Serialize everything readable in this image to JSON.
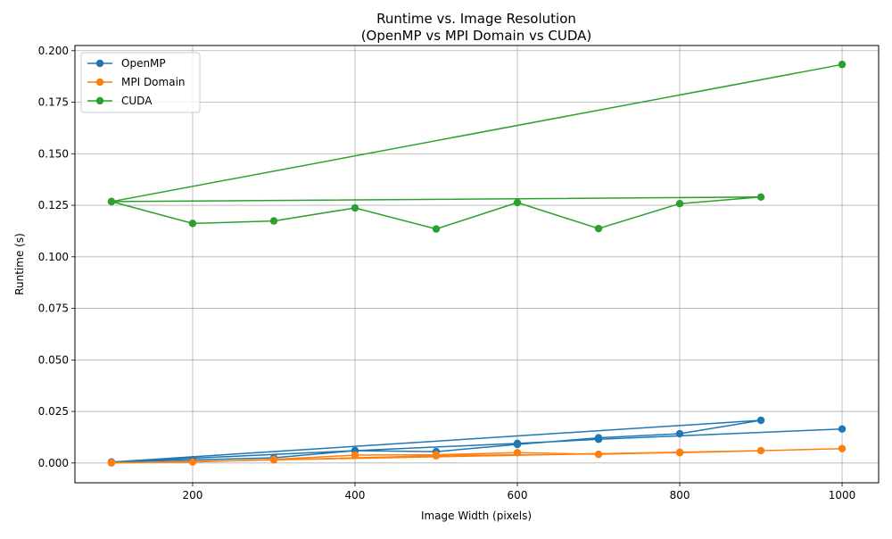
{
  "chart_data": {
    "type": "line",
    "title": "Runtime vs. Image Resolution",
    "subtitle": "(OpenMP vs MPI Domain vs CUDA)",
    "xlabel": "Image Width (pixels)",
    "ylabel": "Runtime (s)",
    "xlim": [
      55,
      1045
    ],
    "ylim": [
      -0.0096,
      0.2025
    ],
    "xticks": [
      200,
      400,
      600,
      800,
      1000
    ],
    "yticks": [
      0.0,
      0.025,
      0.05,
      0.075,
      0.1,
      0.125,
      0.15,
      0.175,
      0.2
    ],
    "ytick_labels": [
      "0.000",
      "0.025",
      "0.050",
      "0.075",
      "0.100",
      "0.125",
      "0.150",
      "0.175",
      "0.200"
    ],
    "grid": true,
    "legend_position": "top-left",
    "series": [
      {
        "name": "OpenMP",
        "color": "#1f77b4",
        "x": [
          100,
          200,
          300,
          400,
          500,
          600,
          700,
          800,
          900,
          100,
          400,
          600,
          700,
          1000
        ],
        "y": [
          0.0005,
          0.0015,
          0.0025,
          0.006,
          0.0055,
          0.009,
          0.0122,
          0.0142,
          0.0207,
          0.0005,
          0.006,
          0.0095,
          0.0115,
          0.0165
        ]
      },
      {
        "name": "MPI Domain",
        "color": "#ff7f0e",
        "x": [
          100,
          200,
          300,
          400,
          500,
          600,
          700,
          800,
          900,
          100,
          300,
          500,
          800,
          1000
        ],
        "y": [
          0.0002,
          0.0005,
          0.0018,
          0.0038,
          0.004,
          0.005,
          0.0042,
          0.0052,
          0.006,
          0.0,
          0.0015,
          0.0035,
          0.005,
          0.007
        ]
      },
      {
        "name": "CUDA",
        "color": "#2ca02c",
        "x": [
          100,
          200,
          300,
          400,
          500,
          600,
          700,
          800,
          900,
          100,
          1000
        ],
        "y": [
          0.1268,
          0.1162,
          0.1174,
          0.1237,
          0.1135,
          0.1263,
          0.1137,
          0.1258,
          0.129,
          0.1268,
          0.1933
        ]
      }
    ]
  }
}
